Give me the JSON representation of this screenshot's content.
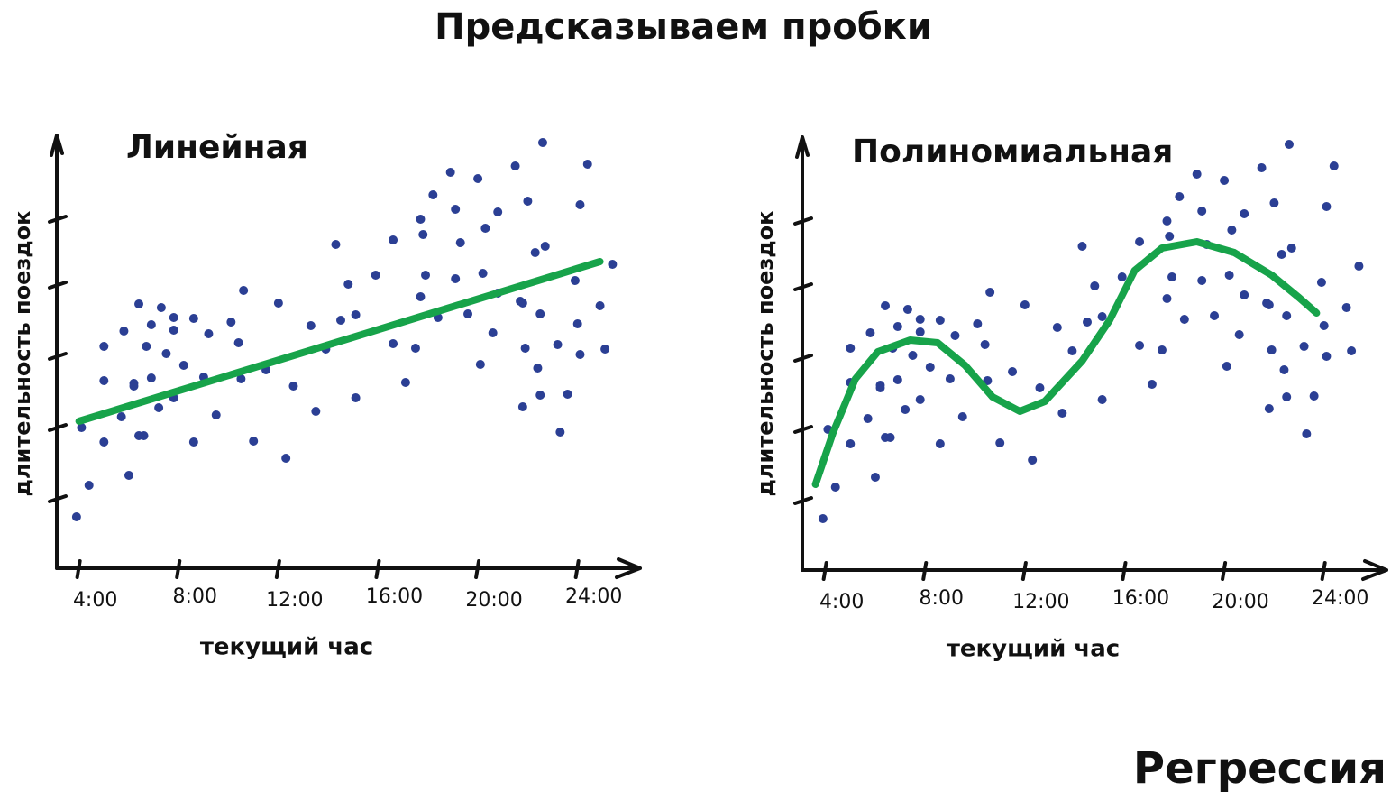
{
  "title": "Предсказываем пробки",
  "caption": "Регрессия",
  "chart_data": [
    {
      "type": "scatter",
      "title": "Линейная",
      "xlabel": "текущий час",
      "ylabel": "длительность поездок",
      "xlim": [
        3,
        26
      ],
      "ylim": [
        0,
        480
      ],
      "xticks": [
        {
          "value": 4,
          "label": "4:00"
        },
        {
          "value": 8,
          "label": "8:00"
        },
        {
          "value": 12,
          "label": "12:00"
        },
        {
          "value": 16,
          "label": "16:00"
        },
        {
          "value": 20,
          "label": "20:00"
        },
        {
          "value": 24,
          "label": "24:00"
        }
      ],
      "yticks": [
        77,
        156,
        235,
        314,
        387
      ],
      "color": "#2b3f94",
      "x": [
        3.9,
        4.1,
        4.4,
        5.0,
        5.0,
        5.0,
        5.7,
        5.8,
        6.0,
        6.2,
        6.2,
        6.4,
        6.4,
        6.6,
        6.7,
        6.9,
        6.9,
        7.2,
        7.3,
        7.5,
        7.8,
        7.8,
        7.8,
        8.2,
        8.6,
        8.6,
        9.0,
        9.2,
        9.5,
        10.1,
        10.4,
        10.5,
        10.6,
        11.0,
        11.5,
        12.0,
        12.3,
        12.6,
        13.3,
        13.5,
        13.9,
        14.3,
        14.5,
        14.8,
        15.1,
        15.1,
        15.9,
        16.6,
        16.6,
        17.1,
        17.5,
        17.7,
        17.7,
        17.8,
        17.9,
        18.2,
        18.4,
        18.9,
        19.1,
        19.1,
        19.3,
        19.6,
        20.0,
        20.1,
        20.2,
        20.3,
        20.6,
        20.8,
        20.8,
        21.5,
        21.7,
        21.8,
        21.8,
        21.9,
        22.0,
        22.3,
        22.4,
        22.5,
        22.5,
        22.6,
        22.7,
        23.2,
        23.3,
        23.6,
        23.9,
        24.0,
        24.1,
        24.1,
        24.4,
        24.9,
        25.1,
        25.4
      ],
      "values": [
        57,
        156,
        92,
        140,
        246,
        208,
        168,
        263,
        103,
        205,
        202,
        293,
        147,
        147,
        246,
        270,
        211,
        178,
        289,
        238,
        264,
        278,
        189,
        225,
        277,
        140,
        212,
        260,
        170,
        273,
        250,
        210,
        308,
        141,
        220,
        294,
        122,
        202,
        269,
        174,
        243,
        359,
        275,
        315,
        281,
        189,
        325,
        364,
        249,
        206,
        244,
        301,
        387,
        370,
        325,
        414,
        278,
        439,
        321,
        398,
        361,
        282,
        432,
        226,
        327,
        377,
        261,
        395,
        305,
        446,
        296,
        294,
        179,
        244,
        407,
        350,
        222,
        282,
        192,
        472,
        357,
        248,
        151,
        193,
        319,
        271,
        237,
        403,
        448,
        291,
        243,
        337
      ],
      "fit": {
        "color": "#17a34a",
        "x": [
          4.0,
          24.9
        ],
        "y": [
          163,
          340
        ]
      }
    },
    {
      "type": "scatter",
      "title": "Полиномиальная",
      "xlabel": "текущий час",
      "ylabel": "длительность поездок",
      "xlim": [
        3,
        26
      ],
      "ylim": [
        0,
        480
      ],
      "xticks": [
        {
          "value": 4,
          "label": "4:00"
        },
        {
          "value": 8,
          "label": "8:00"
        },
        {
          "value": 12,
          "label": "12:00"
        },
        {
          "value": 16,
          "label": "16:00"
        },
        {
          "value": 20,
          "label": "20:00"
        },
        {
          "value": 24,
          "label": "24:00"
        }
      ],
      "yticks": [
        77,
        156,
        235,
        314,
        387
      ],
      "color": "#2b3f94",
      "x": [
        3.9,
        4.1,
        4.4,
        5.0,
        5.0,
        5.0,
        5.7,
        5.8,
        6.0,
        6.2,
        6.2,
        6.4,
        6.4,
        6.6,
        6.7,
        6.9,
        6.9,
        7.2,
        7.3,
        7.5,
        7.8,
        7.8,
        7.8,
        8.2,
        8.6,
        8.6,
        9.0,
        9.2,
        9.5,
        10.1,
        10.4,
        10.5,
        10.6,
        11.0,
        11.5,
        12.0,
        12.3,
        12.6,
        13.3,
        13.5,
        13.9,
        14.3,
        14.5,
        14.8,
        15.1,
        15.1,
        15.9,
        16.6,
        16.6,
        17.1,
        17.5,
        17.7,
        17.7,
        17.8,
        17.9,
        18.2,
        18.4,
        18.9,
        19.1,
        19.1,
        19.3,
        19.6,
        20.0,
        20.1,
        20.2,
        20.3,
        20.6,
        20.8,
        20.8,
        21.5,
        21.7,
        21.8,
        21.8,
        21.9,
        22.0,
        22.3,
        22.4,
        22.5,
        22.5,
        22.6,
        22.7,
        23.2,
        23.3,
        23.6,
        23.9,
        24.0,
        24.1,
        24.1,
        24.4,
        24.9,
        25.1,
        25.4
      ],
      "values": [
        57,
        156,
        92,
        140,
        246,
        208,
        168,
        263,
        103,
        205,
        202,
        293,
        147,
        147,
        246,
        270,
        211,
        178,
        289,
        238,
        264,
        278,
        189,
        225,
        277,
        140,
        212,
        260,
        170,
        273,
        250,
        210,
        308,
        141,
        220,
        294,
        122,
        202,
        269,
        174,
        243,
        359,
        275,
        315,
        281,
        189,
        325,
        364,
        249,
        206,
        244,
        301,
        387,
        370,
        325,
        414,
        278,
        439,
        321,
        398,
        361,
        282,
        432,
        226,
        327,
        377,
        261,
        395,
        305,
        446,
        296,
        294,
        179,
        244,
        407,
        350,
        222,
        282,
        192,
        472,
        357,
        248,
        151,
        193,
        319,
        271,
        237,
        403,
        448,
        291,
        243,
        337
      ],
      "fit": {
        "color": "#17a34a",
        "x": [
          3.6,
          4.3,
          5.2,
          6.1,
          7.4,
          8.5,
          9.6,
          10.7,
          11.8,
          12.8,
          14.3,
          15.4,
          16.4,
          17.5,
          18.9,
          20.4,
          21.9,
          23.0,
          23.7
        ],
        "y": [
          95,
          152,
          212,
          242,
          255,
          252,
          227,
          192,
          176,
          187,
          232,
          277,
          332,
          357,
          364,
          352,
          327,
          302,
          285
        ]
      }
    }
  ]
}
